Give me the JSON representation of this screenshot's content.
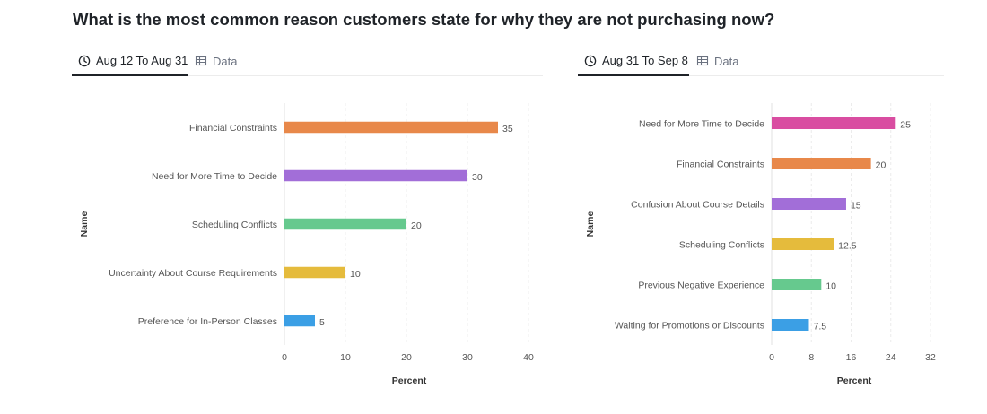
{
  "title": "What is the most common reason customers state for why they are not purchasing now?",
  "panels": [
    {
      "tabs": [
        {
          "label": "Aug 12 To Aug 31",
          "icon": "clock-icon",
          "active": true
        },
        {
          "label": "Data",
          "icon": "table-icon",
          "active": false
        }
      ]
    },
    {
      "tabs": [
        {
          "label": "Aug 31 To Sep 8",
          "icon": "clock-icon",
          "active": true
        },
        {
          "label": "Data",
          "icon": "table-icon",
          "active": false
        }
      ]
    }
  ],
  "chart_data": [
    {
      "type": "bar",
      "orientation": "horizontal",
      "categories": [
        "Financial Constraints",
        "Need for More Time to Decide",
        "Scheduling Conflicts",
        "Uncertainty About Course Requirements",
        "Preference for In-Person Classes"
      ],
      "values": [
        35,
        30,
        20,
        10,
        5
      ],
      "value_labels": [
        "35",
        "30",
        "20",
        "10",
        "5"
      ],
      "colors": [
        "#e8884a",
        "#a26ed8",
        "#66c98e",
        "#e5bb3c",
        "#3b9fe5"
      ],
      "xlabel": "Percent",
      "ylabel": "Name",
      "xlim": [
        0,
        40
      ],
      "xticks": [
        0,
        10,
        20,
        30,
        40
      ],
      "xtick_labels": [
        "0",
        "10",
        "20",
        "30",
        "40"
      ],
      "grid": true
    },
    {
      "type": "bar",
      "orientation": "horizontal",
      "categories": [
        "Need for More Time to Decide",
        "Financial Constraints",
        "Confusion About Course Details",
        "Scheduling Conflicts",
        "Previous Negative Experience",
        "Waiting for Promotions or Discounts"
      ],
      "values": [
        25,
        20,
        15,
        12.5,
        10,
        7.5
      ],
      "value_labels": [
        "25",
        "20",
        "15",
        "12.5",
        "10",
        "7.5"
      ],
      "colors": [
        "#d94da1",
        "#e8884a",
        "#a26ed8",
        "#e5bb3c",
        "#66c98e",
        "#3b9fe5"
      ],
      "xlabel": "Percent",
      "ylabel": "Name",
      "xlim": [
        0,
        32
      ],
      "xticks": [
        0,
        8,
        16,
        24,
        32
      ],
      "xtick_labels": [
        "0",
        "8",
        "16",
        "24",
        "32"
      ],
      "grid": true
    }
  ]
}
